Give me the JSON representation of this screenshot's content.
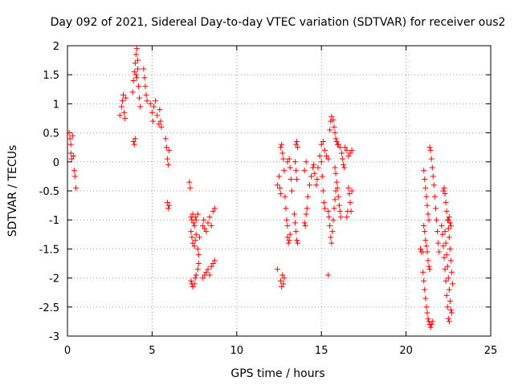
{
  "chart_data": {
    "type": "scatter",
    "title": "Day 092 of 2021, Sidereal Day-to-day VTEC variation (SDTVAR) for receiver ous2",
    "xlabel": "GPS time / hours",
    "ylabel": "SDTVAR / TECUs",
    "xlim": [
      0,
      25
    ],
    "ylim": [
      -3,
      2
    ],
    "xticks": [
      0,
      5,
      10,
      15,
      20,
      25
    ],
    "xtick_labels": [
      "0",
      "5",
      "10",
      "15",
      "20",
      "25"
    ],
    "yticks": [
      2,
      1.5,
      1,
      0.5,
      0,
      -0.5,
      -1,
      -1.5,
      -2,
      -2.5,
      -3
    ],
    "ytick_labels": [
      "2",
      "1.5",
      "1",
      "0.5",
      "0",
      "-0.5",
      "-1",
      "-1.5",
      "-2",
      "-2.5",
      "-3"
    ],
    "grid": true,
    "marker": "plus",
    "color": "#ff0000",
    "series": [
      {
        "name": "SDTVAR",
        "points": [
          [
            0.1,
            0.5
          ],
          [
            0.15,
            0.4
          ],
          [
            0.2,
            0.3
          ],
          [
            0.2,
            0.15
          ],
          [
            0.25,
            0.05
          ],
          [
            0.3,
            0.45
          ],
          [
            0.35,
            0.1
          ],
          [
            0.4,
            -0.15
          ],
          [
            0.45,
            -0.25
          ],
          [
            0.5,
            -0.45
          ],
          [
            3.1,
            0.8
          ],
          [
            3.2,
            0.95
          ],
          [
            3.25,
            1.05
          ],
          [
            3.3,
            1.15
          ],
          [
            3.35,
            0.85
          ],
          [
            3.4,
            0.75
          ],
          [
            3.45,
            1.1
          ],
          [
            3.9,
            0.35
          ],
          [
            3.95,
            0.3
          ],
          [
            4.0,
            0.4
          ],
          [
            3.85,
            1.2
          ],
          [
            3.9,
            1.4
          ],
          [
            3.95,
            1.55
          ],
          [
            4.0,
            1.7
          ],
          [
            4.05,
            1.85
          ],
          [
            4.1,
            1.95
          ],
          [
            4.15,
            1.6
          ],
          [
            4.1,
            1.45
          ],
          [
            4.2,
            1.3
          ],
          [
            4.25,
            1.1
          ],
          [
            4.3,
            0.95
          ],
          [
            4.15,
            1.75
          ],
          [
            4.05,
            1.5
          ],
          [
            4.5,
            1.6
          ],
          [
            4.55,
            1.45
          ],
          [
            4.6,
            1.3
          ],
          [
            4.65,
            1.15
          ],
          [
            4.7,
            1.05
          ],
          [
            4.9,
            1.0
          ],
          [
            5.0,
            0.85
          ],
          [
            5.05,
            0.7
          ],
          [
            5.1,
            0.95
          ],
          [
            5.2,
            1.05
          ],
          [
            5.3,
            0.8
          ],
          [
            5.4,
            0.65
          ],
          [
            5.5,
            0.7
          ],
          [
            5.55,
            0.6
          ],
          [
            5.45,
            0.9
          ],
          [
            5.8,
            0.4
          ],
          [
            5.85,
            0.25
          ],
          [
            5.9,
            0.05
          ],
          [
            5.95,
            -0.05
          ],
          [
            6.0,
            0.2
          ],
          [
            5.9,
            -0.7
          ],
          [
            5.95,
            -0.8
          ],
          [
            6.0,
            -0.75
          ],
          [
            7.2,
            -0.35
          ],
          [
            7.25,
            -0.45
          ],
          [
            7.3,
            -0.95
          ],
          [
            7.35,
            -1.0
          ],
          [
            7.4,
            -0.9
          ],
          [
            7.45,
            -1.05
          ],
          [
            7.5,
            -1.1
          ],
          [
            7.55,
            -0.95
          ],
          [
            7.6,
            -1.0
          ],
          [
            7.7,
            -0.9
          ],
          [
            7.3,
            -1.2
          ],
          [
            7.35,
            -1.3
          ],
          [
            7.4,
            -1.4
          ],
          [
            7.5,
            -1.45
          ],
          [
            7.55,
            -1.35
          ],
          [
            7.6,
            -1.25
          ],
          [
            7.7,
            -1.5
          ],
          [
            7.75,
            -1.6
          ],
          [
            7.8,
            -1.3
          ],
          [
            7.3,
            -2.05
          ],
          [
            7.35,
            -2.1
          ],
          [
            7.4,
            -2.15
          ],
          [
            7.5,
            -2.1
          ],
          [
            7.55,
            -2.0
          ],
          [
            7.6,
            -1.95
          ],
          [
            7.7,
            -1.85
          ],
          [
            7.75,
            -1.75
          ],
          [
            8.0,
            -1.1
          ],
          [
            8.05,
            -1.0
          ],
          [
            8.1,
            -1.15
          ],
          [
            8.2,
            -1.2
          ],
          [
            8.3,
            -1.05
          ],
          [
            8.4,
            -0.95
          ],
          [
            8.5,
            -1.1
          ],
          [
            8.6,
            -0.85
          ],
          [
            8.7,
            -0.8
          ],
          [
            8.0,
            -2.0
          ],
          [
            8.1,
            -1.95
          ],
          [
            8.2,
            -1.9
          ],
          [
            8.3,
            -1.85
          ],
          [
            8.4,
            -1.95
          ],
          [
            8.5,
            -1.8
          ],
          [
            8.6,
            -1.75
          ],
          [
            8.7,
            -1.7
          ],
          [
            12.4,
            -1.85
          ],
          [
            12.4,
            -0.4
          ],
          [
            12.5,
            -0.25
          ],
          [
            12.55,
            -0.45
          ],
          [
            12.6,
            -0.55
          ],
          [
            12.6,
            -2.05
          ],
          [
            12.65,
            -2.15
          ],
          [
            12.7,
            -1.95
          ],
          [
            12.75,
            -2.1
          ],
          [
            12.8,
            -2.0
          ],
          [
            12.6,
            0.25
          ],
          [
            12.65,
            0.3
          ],
          [
            12.7,
            0.15
          ],
          [
            12.75,
            0.05
          ],
          [
            12.8,
            -0.15
          ],
          [
            12.85,
            -0.6
          ],
          [
            12.9,
            -0.8
          ],
          [
            12.95,
            -1.0
          ],
          [
            13.0,
            -1.1
          ],
          [
            13.0,
            -1.3
          ],
          [
            13.05,
            -1.4
          ],
          [
            13.1,
            -1.35
          ],
          [
            13.15,
            -1.25
          ],
          [
            13.0,
            0.0
          ],
          [
            13.1,
            0.05
          ],
          [
            13.15,
            -0.1
          ],
          [
            13.2,
            -0.3
          ],
          [
            13.25,
            -0.5
          ],
          [
            13.4,
            -0.9
          ],
          [
            13.45,
            -1.05
          ],
          [
            13.5,
            -1.2
          ],
          [
            13.55,
            -1.35
          ],
          [
            13.6,
            -1.4
          ],
          [
            13.45,
            0.0
          ],
          [
            13.5,
            -0.15
          ],
          [
            13.55,
            -0.3
          ],
          [
            13.5,
            0.3
          ],
          [
            13.55,
            0.35
          ],
          [
            13.6,
            0.25
          ],
          [
            14.0,
            -1.05
          ],
          [
            14.05,
            -1.1
          ],
          [
            14.1,
            -0.9
          ],
          [
            14.15,
            -0.8
          ],
          [
            14.2,
            -0.6
          ],
          [
            14.3,
            -0.4
          ],
          [
            14.4,
            -0.25
          ],
          [
            14.5,
            -0.1
          ],
          [
            14.55,
            -0.05
          ],
          [
            14.0,
            -0.15
          ],
          [
            14.1,
            0.0
          ],
          [
            14.6,
            -0.2
          ],
          [
            14.7,
            -0.4
          ],
          [
            14.75,
            -0.3
          ],
          [
            14.8,
            -0.1
          ],
          [
            14.9,
            0.1
          ],
          [
            15.0,
            0.0
          ],
          [
            15.05,
            -0.25
          ],
          [
            15.1,
            -0.5
          ],
          [
            15.15,
            -0.7
          ],
          [
            15.2,
            -0.8
          ],
          [
            15.0,
            0.3
          ],
          [
            15.1,
            0.35
          ],
          [
            15.2,
            0.2
          ],
          [
            15.3,
            0.1
          ],
          [
            15.4,
            0.05
          ],
          [
            15.4,
            -1.95
          ],
          [
            15.4,
            -0.85
          ],
          [
            15.45,
            -0.95
          ],
          [
            15.5,
            -1.1
          ],
          [
            15.55,
            -1.3
          ],
          [
            15.6,
            -1.4
          ],
          [
            15.65,
            -1.2
          ],
          [
            15.7,
            -1.0
          ],
          [
            15.75,
            -0.8
          ],
          [
            15.8,
            -0.65
          ],
          [
            15.85,
            -0.5
          ],
          [
            15.5,
            0.55
          ],
          [
            15.55,
            0.7
          ],
          [
            15.6,
            0.78
          ],
          [
            15.7,
            0.72
          ],
          [
            15.75,
            0.6
          ],
          [
            15.8,
            0.5
          ],
          [
            15.85,
            0.4
          ],
          [
            15.9,
            0.35
          ],
          [
            15.95,
            0.3
          ],
          [
            15.8,
            -0.1
          ],
          [
            15.85,
            -0.2
          ],
          [
            15.9,
            -0.35
          ],
          [
            15.95,
            -0.45
          ],
          [
            16.0,
            -0.6
          ],
          [
            16.05,
            -0.75
          ],
          [
            16.1,
            -0.85
          ],
          [
            16.15,
            -0.95
          ],
          [
            16.0,
            0.3
          ],
          [
            16.1,
            0.25
          ],
          [
            16.2,
            0.15
          ],
          [
            16.25,
            0.05
          ],
          [
            16.3,
            -0.05
          ],
          [
            16.35,
            -0.1
          ],
          [
            16.4,
            0.25
          ],
          [
            16.5,
            0.2
          ],
          [
            16.6,
            0.1
          ],
          [
            16.7,
            0.15
          ],
          [
            16.8,
            0.2
          ],
          [
            16.6,
            -0.45
          ],
          [
            16.65,
            -0.55
          ],
          [
            16.7,
            -0.7
          ],
          [
            16.75,
            -0.85
          ],
          [
            16.5,
            -0.95
          ],
          [
            16.55,
            -0.85
          ],
          [
            16.8,
            -0.5
          ],
          [
            20.85,
            -1.5
          ],
          [
            20.9,
            -1.55
          ],
          [
            21.0,
            -1.55
          ],
          [
            21.0,
            -1.9
          ],
          [
            21.05,
            -2.05
          ],
          [
            21.1,
            -2.2
          ],
          [
            21.15,
            -2.35
          ],
          [
            21.2,
            -2.5
          ],
          [
            21.25,
            -2.6
          ],
          [
            21.3,
            -2.7
          ],
          [
            21.35,
            -2.75
          ],
          [
            21.4,
            -2.8
          ],
          [
            21.45,
            -2.85
          ],
          [
            21.5,
            -2.8
          ],
          [
            21.55,
            -2.75
          ],
          [
            21.05,
            -1.1
          ],
          [
            21.1,
            -1.2
          ],
          [
            21.15,
            -1.35
          ],
          [
            21.2,
            -1.45
          ],
          [
            21.25,
            -1.55
          ],
          [
            21.3,
            -1.7
          ],
          [
            21.35,
            -1.8
          ],
          [
            21.4,
            -1.85
          ],
          [
            21.05,
            -0.15
          ],
          [
            21.1,
            -0.3
          ],
          [
            21.15,
            -0.45
          ],
          [
            21.2,
            -0.6
          ],
          [
            21.25,
            -0.75
          ],
          [
            21.3,
            -0.9
          ],
          [
            21.35,
            -1.0
          ],
          [
            21.4,
            0.25
          ],
          [
            21.45,
            0.2
          ],
          [
            21.5,
            0.05
          ],
          [
            21.55,
            -0.1
          ],
          [
            21.6,
            -0.25
          ],
          [
            21.65,
            -0.4
          ],
          [
            21.7,
            -0.6
          ],
          [
            21.75,
            -0.8
          ],
          [
            21.8,
            -1.0
          ],
          [
            21.85,
            -1.2
          ],
          [
            21.9,
            -1.4
          ],
          [
            21.95,
            -1.55
          ],
          [
            22.2,
            -0.5
          ],
          [
            22.25,
            -0.45
          ],
          [
            22.3,
            -0.55
          ],
          [
            22.35,
            -0.7
          ],
          [
            22.4,
            -0.85
          ],
          [
            22.45,
            -1.0
          ],
          [
            22.5,
            -1.15
          ],
          [
            22.55,
            -1.3
          ],
          [
            22.6,
            -1.5
          ],
          [
            22.65,
            -1.7
          ],
          [
            22.7,
            -1.9
          ],
          [
            22.75,
            -2.1
          ],
          [
            22.3,
            -1.2
          ],
          [
            22.35,
            -1.4
          ],
          [
            22.4,
            -1.6
          ],
          [
            22.45,
            -1.8
          ],
          [
            22.5,
            -2.0
          ],
          [
            22.55,
            -2.2
          ],
          [
            22.6,
            -2.4
          ],
          [
            22.65,
            -2.55
          ],
          [
            22.7,
            -2.6
          ],
          [
            22.1,
            -1.1
          ],
          [
            22.15,
            -1.25
          ],
          [
            22.2,
            -1.45
          ],
          [
            22.25,
            -1.65
          ],
          [
            22.3,
            -1.85
          ],
          [
            22.35,
            -2.05
          ],
          [
            22.4,
            -2.3
          ],
          [
            22.45,
            -2.5
          ],
          [
            22.5,
            -2.7
          ],
          [
            22.55,
            -2.75
          ],
          [
            22.5,
            -1.0
          ],
          [
            22.55,
            -0.95
          ],
          [
            22.6,
            -1.05
          ],
          [
            22.65,
            -1.1
          ]
        ]
      }
    ]
  }
}
